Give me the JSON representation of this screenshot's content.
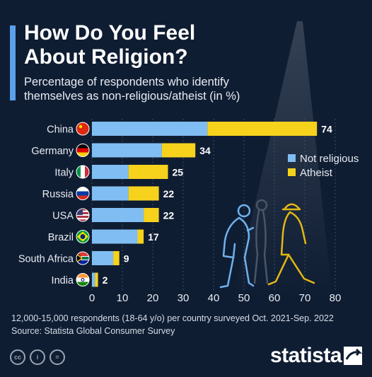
{
  "header": {
    "title_line1": "How Do You Feel",
    "title_line2": "About Religion?",
    "subtitle_line1": "Percentage of respondents who identify",
    "subtitle_line2": "themselves as non-religious/atheist (in %)"
  },
  "footer": {
    "note": "12,000-15,000 respondents (18-64 y/o) per country surveyed Oct. 2021-Sep. 2022",
    "source": "Source: Statista Global Consumer Survey",
    "brand": "statista",
    "license_icons": [
      "cc-icon",
      "by-icon",
      "nd-icon"
    ],
    "license_labels": [
      "cc",
      "i",
      "="
    ]
  },
  "colors": {
    "background": "#0f1d33",
    "not_religious": "#80bdf2",
    "atheist": "#f7d21c",
    "accent": "#5aa0ea"
  },
  "chart_data": {
    "type": "bar",
    "orientation": "horizontal",
    "stacked": true,
    "categories": [
      "China",
      "Germany",
      "Italy",
      "Russia",
      "USA",
      "Brazil",
      "South Africa",
      "India"
    ],
    "flags": [
      "china-flag-icon",
      "germany-flag-icon",
      "italy-flag-icon",
      "russia-flag-icon",
      "usa-flag-icon",
      "brazil-flag-icon",
      "south-africa-flag-icon",
      "india-flag-icon"
    ],
    "series": [
      {
        "name": "Not religious",
        "values": [
          38,
          23,
          12,
          12,
          17,
          15,
          7,
          1
        ]
      },
      {
        "name": "Atheist",
        "values": [
          36,
          11,
          13,
          10,
          5,
          2,
          2,
          1
        ]
      }
    ],
    "totals": [
      "74",
      "34",
      "25",
      "22",
      "22",
      "17",
      "9",
      "2"
    ],
    "xticks": [
      0,
      10,
      20,
      30,
      40,
      50,
      60,
      70,
      80
    ],
    "xlim": [
      0,
      80
    ],
    "legend_position": "right",
    "grid": true
  }
}
